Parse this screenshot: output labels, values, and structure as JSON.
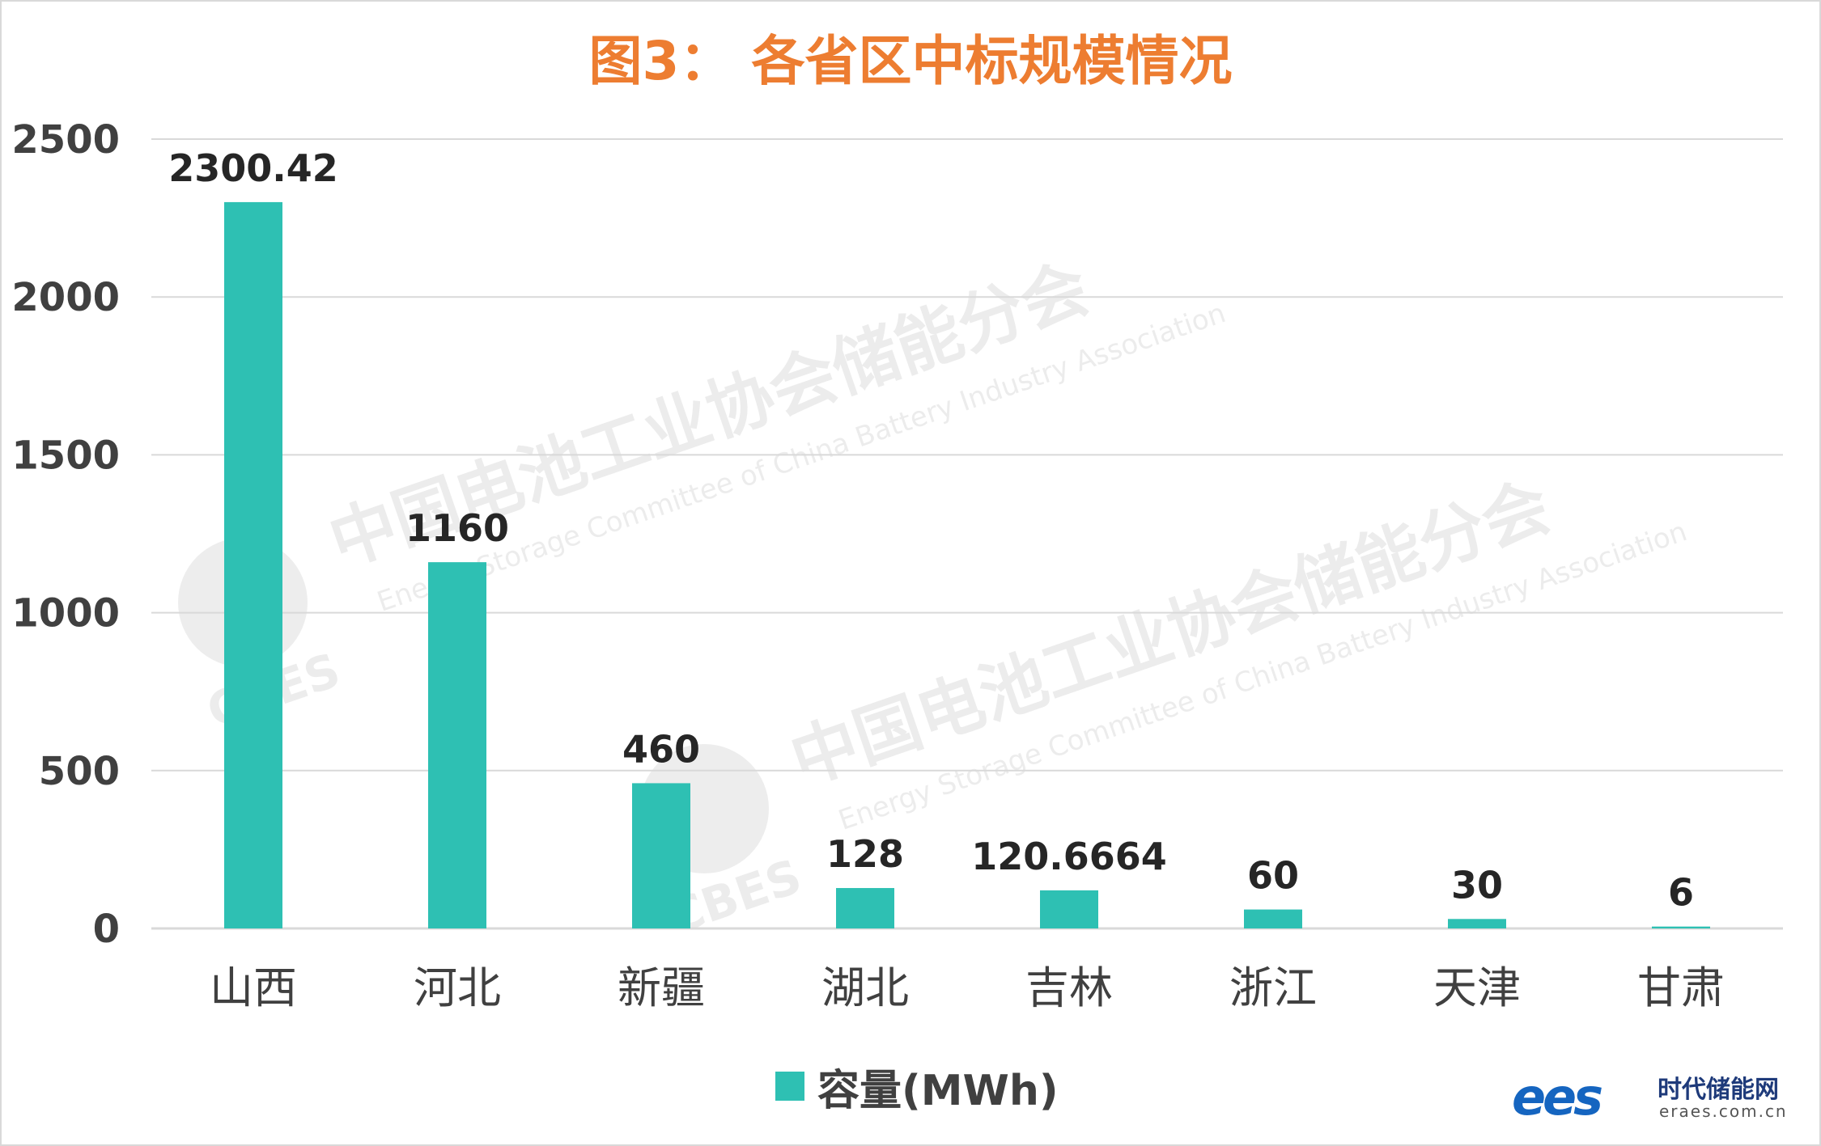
{
  "chart_data": {
    "type": "bar",
    "title": "图3： 各省区中标规模情况",
    "categories": [
      "山西",
      "河北",
      "新疆",
      "湖北",
      "吉林",
      "浙江",
      "天津",
      "甘肃"
    ],
    "series": [
      {
        "name": "容量(MWh)",
        "values": [
          2300.42,
          1160,
          460,
          128,
          120.6664,
          60,
          30,
          6
        ],
        "data_labels": [
          "2300.42",
          "1160",
          "460",
          "128",
          "120.6664",
          "60",
          "30",
          "6"
        ]
      }
    ],
    "ylim": [
      0,
      2500
    ],
    "yticks": [
      "0",
      "500",
      "1000",
      "1500",
      "2000",
      "2500"
    ],
    "grid": true,
    "legend_position": "bottom",
    "bar_color": "#2ec0b3"
  },
  "watermark": {
    "org_cn": "中国电池工业协会储能分会",
    "org_en": "Energy Storage Committee of China Battery Industry Association",
    "abbr": "CBES"
  },
  "logo": {
    "mark": "ees",
    "name": "时代储能网",
    "site": "eraes.com.cn"
  },
  "colors": {
    "title": "#ed7d31",
    "bar": "#2ec0b3",
    "grid": "#d9d9d9",
    "axis_text": "#404040",
    "label_text": "#262626"
  }
}
